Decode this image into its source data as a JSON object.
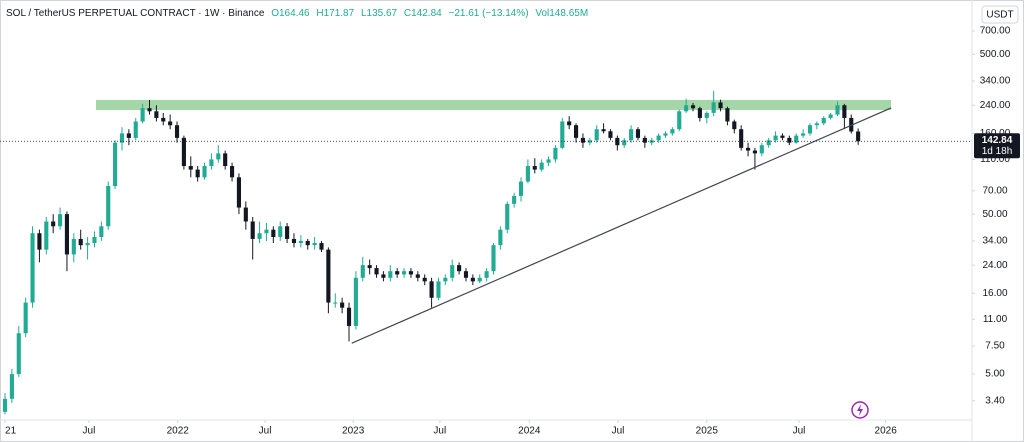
{
  "chart_data": {
    "type": "candlestick",
    "header": {
      "title": "SOL / TetherUS PERPETUAL CONTRACT · 1W · Binance",
      "ohlc_labels": [
        "O164.46",
        "H171.87",
        "L135.67",
        "C142.84"
      ],
      "change_label": "−21.61 (−13.14%)",
      "volume_label": "Vol148.65M"
    },
    "currency": "USDT",
    "countdown": "1d 18h",
    "log_scale": true,
    "grid": false,
    "up_color": "#22ab94",
    "down_color": "#131722",
    "ylim": [
      2.58,
      796
    ],
    "yticks": [
      {
        "value": 3.4,
        "label": "3.40"
      },
      {
        "value": 5,
        "label": "5.00"
      },
      {
        "value": 7.5,
        "label": "7.50"
      },
      {
        "value": 11,
        "label": "11.00"
      },
      {
        "value": 16,
        "label": "16.00"
      },
      {
        "value": 24,
        "label": "24.00"
      },
      {
        "value": 34,
        "label": "34.00"
      },
      {
        "value": 50,
        "label": "50.00"
      },
      {
        "value": 70,
        "label": "70.00"
      },
      {
        "value": 110,
        "label": "110.00"
      },
      {
        "value": 160,
        "label": "160.00"
      },
      {
        "value": 240,
        "label": "240.00"
      },
      {
        "value": 340,
        "label": "340.00"
      },
      {
        "value": 500,
        "label": "500.00"
      },
      {
        "value": 700,
        "label": "700.00"
      }
    ],
    "xlim": [
      -0.73,
      140.55
    ],
    "xticks": [
      {
        "value": 0,
        "label": "21"
      },
      {
        "value": 12.2,
        "label": "Jul"
      },
      {
        "value": 25.1,
        "label": "2022"
      },
      {
        "value": 37.8,
        "label": "Jul"
      },
      {
        "value": 50.6,
        "label": "2023"
      },
      {
        "value": 63.2,
        "label": "Jul"
      },
      {
        "value": 76.2,
        "label": "2024"
      },
      {
        "value": 89.1,
        "label": "Jul"
      },
      {
        "value": 102,
        "label": "2025"
      },
      {
        "value": 115.4,
        "label": "Jul"
      },
      {
        "value": 128,
        "label": "2026"
      }
    ],
    "zone": {
      "range": [
        224,
        259
      ],
      "color": "#a5d6a7"
    },
    "trendline": [
      [
        50.4,
        7.8
      ],
      [
        128.8,
        231
      ]
    ],
    "candles": [
      [
        2.9,
        3.8,
        2.8,
        3.5
      ],
      [
        3.5,
        5.4,
        3.3,
        5
      ],
      [
        5,
        10,
        4.8,
        9
      ],
      [
        9,
        15,
        8.5,
        14
      ],
      [
        14,
        42,
        13,
        38
      ],
      [
        38,
        40,
        25,
        30
      ],
      [
        30,
        48,
        28,
        45
      ],
      [
        45,
        50,
        38,
        42
      ],
      [
        42,
        55,
        40,
        50
      ],
      [
        50,
        52,
        22,
        28
      ],
      [
        28,
        38,
        25,
        35
      ],
      [
        35,
        40,
        30,
        32
      ],
      [
        32,
        36,
        26,
        33
      ],
      [
        33,
        39,
        31,
        36
      ],
      [
        36,
        45,
        34,
        42
      ],
      [
        42,
        80,
        40,
        75
      ],
      [
        75,
        145,
        72,
        140
      ],
      [
        140,
        175,
        125,
        160
      ],
      [
        160,
        170,
        135,
        150
      ],
      [
        150,
        200,
        145,
        190
      ],
      [
        190,
        245,
        185,
        230
      ],
      [
        230,
        259,
        210,
        220
      ],
      [
        220,
        240,
        190,
        200
      ],
      [
        200,
        215,
        180,
        190
      ],
      [
        190,
        210,
        170,
        180
      ],
      [
        180,
        190,
        140,
        150
      ],
      [
        150,
        155,
        95,
        100
      ],
      [
        100,
        115,
        85,
        95
      ],
      [
        95,
        100,
        80,
        85
      ],
      [
        85,
        105,
        82,
        100
      ],
      [
        100,
        120,
        95,
        110
      ],
      [
        110,
        135,
        105,
        120
      ],
      [
        120,
        125,
        95,
        100
      ],
      [
        100,
        105,
        80,
        85
      ],
      [
        85,
        90,
        50,
        55
      ],
      [
        55,
        60,
        40,
        45
      ],
      [
        45,
        48,
        26,
        35
      ],
      [
        35,
        45,
        33,
        38
      ],
      [
        38,
        44,
        34,
        40
      ],
      [
        40,
        42,
        33,
        36
      ],
      [
        36,
        45,
        34,
        42
      ],
      [
        42,
        44,
        33,
        35
      ],
      [
        35,
        38,
        31,
        33
      ],
      [
        33,
        37,
        31,
        34
      ],
      [
        34,
        35,
        30,
        32
      ],
      [
        32,
        36,
        30,
        33
      ],
      [
        33,
        34,
        29,
        30
      ],
      [
        30,
        31,
        12,
        14
      ],
      [
        14,
        16,
        13,
        14
      ],
      [
        14,
        15,
        12,
        13
      ],
      [
        13,
        14,
        8,
        10
      ],
      [
        10,
        22,
        9.5,
        20
      ],
      [
        20,
        27,
        19,
        24
      ],
      [
        24,
        26,
        21,
        23
      ],
      [
        23,
        24,
        20,
        21
      ],
      [
        21,
        22,
        19,
        20
      ],
      [
        20,
        24,
        19,
        22
      ],
      [
        22,
        23,
        20,
        21
      ],
      [
        21,
        23,
        20,
        22
      ],
      [
        22,
        23,
        20,
        21
      ],
      [
        21,
        22,
        19,
        20
      ],
      [
        20,
        21,
        18,
        19
      ],
      [
        19,
        20,
        13,
        15
      ],
      [
        15,
        20,
        14.5,
        19
      ],
      [
        19,
        21,
        18,
        20
      ],
      [
        20,
        26,
        19,
        24
      ],
      [
        24,
        25,
        21,
        22
      ],
      [
        22,
        23,
        19,
        20
      ],
      [
        20,
        21,
        18,
        19
      ],
      [
        19,
        21,
        18.5,
        20
      ],
      [
        20,
        23,
        19,
        22
      ],
      [
        22,
        33,
        21,
        32
      ],
      [
        32,
        42,
        30,
        40
      ],
      [
        40,
        60,
        38,
        58
      ],
      [
        58,
        68,
        55,
        65
      ],
      [
        65,
        85,
        60,
        80
      ],
      [
        80,
        110,
        78,
        100
      ],
      [
        100,
        112,
        90,
        95
      ],
      [
        95,
        110,
        92,
        105
      ],
      [
        105,
        115,
        100,
        110
      ],
      [
        110,
        135,
        105,
        130
      ],
      [
        130,
        200,
        128,
        190
      ],
      [
        190,
        205,
        170,
        180
      ],
      [
        180,
        185,
        140,
        150
      ],
      [
        150,
        160,
        130,
        140
      ],
      [
        140,
        150,
        135,
        145
      ],
      [
        145,
        180,
        140,
        170
      ],
      [
        170,
        185,
        160,
        165
      ],
      [
        165,
        170,
        145,
        150
      ],
      [
        150,
        155,
        125,
        135
      ],
      [
        135,
        150,
        130,
        145
      ],
      [
        145,
        180,
        140,
        170
      ],
      [
        170,
        175,
        145,
        150
      ],
      [
        150,
        155,
        130,
        140
      ],
      [
        140,
        150,
        135,
        145
      ],
      [
        145,
        160,
        140,
        155
      ],
      [
        155,
        165,
        150,
        160
      ],
      [
        160,
        175,
        155,
        170
      ],
      [
        170,
        225,
        165,
        220
      ],
      [
        220,
        264,
        215,
        240
      ],
      [
        240,
        248,
        220,
        230
      ],
      [
        230,
        235,
        190,
        200
      ],
      [
        200,
        220,
        185,
        215
      ],
      [
        215,
        295,
        205,
        250
      ],
      [
        250,
        260,
        220,
        230
      ],
      [
        230,
        235,
        180,
        190
      ],
      [
        190,
        195,
        160,
        170
      ],
      [
        170,
        180,
        125,
        130
      ],
      [
        130,
        140,
        115,
        125
      ],
      [
        125,
        130,
        95,
        120
      ],
      [
        120,
        140,
        115,
        135
      ],
      [
        135,
        150,
        130,
        145
      ],
      [
        145,
        165,
        140,
        155
      ],
      [
        155,
        160,
        145,
        150
      ],
      [
        150,
        155,
        135,
        140
      ],
      [
        140,
        160,
        138,
        155
      ],
      [
        155,
        170,
        150,
        160
      ],
      [
        160,
        185,
        155,
        180
      ],
      [
        180,
        190,
        170,
        185
      ],
      [
        185,
        205,
        180,
        200
      ],
      [
        200,
        215,
        195,
        210
      ],
      [
        210,
        253,
        205,
        240
      ],
      [
        240,
        245,
        170,
        200
      ],
      [
        200,
        210,
        160,
        164.46
      ],
      [
        164.46,
        171.87,
        135.67,
        142.84
      ]
    ]
  }
}
